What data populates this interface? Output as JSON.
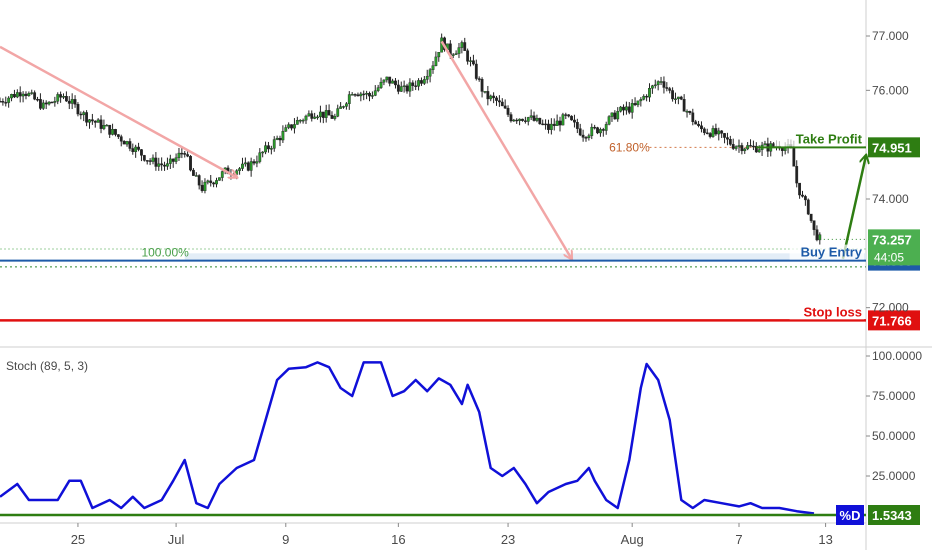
{
  "chart_data": [
    {
      "type": "candlestick",
      "panel": "price",
      "x_axis": {
        "ticks": [
          "25",
          "Jul",
          "9",
          "16",
          "23",
          "Aug",
          "7",
          "13"
        ]
      },
      "y_axis": {
        "range": [
          71.0,
          77.6
        ],
        "ticks": [
          "77.000",
          "76.000",
          "74.000",
          "72.000"
        ],
        "side": "right"
      },
      "price_path": [
        [
          0,
          75.8
        ],
        [
          8,
          76.0
        ],
        [
          15,
          75.7
        ],
        [
          22,
          75.9
        ],
        [
          30,
          75.5
        ],
        [
          37,
          75.3
        ],
        [
          45,
          75.0
        ],
        [
          52,
          74.7
        ],
        [
          58,
          74.6
        ],
        [
          64,
          74.9
        ],
        [
          66,
          74.5
        ],
        [
          70,
          74.2
        ],
        [
          78,
          74.5
        ],
        [
          86,
          74.6
        ],
        [
          94,
          75.0
        ],
        [
          102,
          75.4
        ],
        [
          109,
          75.6
        ],
        [
          116,
          75.5
        ],
        [
          122,
          76.0
        ],
        [
          128,
          75.9
        ],
        [
          134,
          76.2
        ],
        [
          140,
          76.0
        ],
        [
          146,
          76.2
        ],
        [
          150,
          76.5
        ],
        [
          153,
          76.9
        ],
        [
          156,
          76.7
        ],
        [
          160,
          76.8
        ],
        [
          164,
          76.4
        ],
        [
          168,
          75.9
        ],
        [
          172,
          75.8
        ],
        [
          177,
          75.5
        ],
        [
          183,
          75.5
        ],
        [
          190,
          75.3
        ],
        [
          196,
          75.5
        ],
        [
          202,
          75.2
        ],
        [
          208,
          75.3
        ],
        [
          214,
          75.6
        ],
        [
          220,
          75.7
        ],
        [
          225,
          76.0
        ],
        [
          229,
          76.2
        ],
        [
          233,
          75.9
        ],
        [
          237,
          75.7
        ],
        [
          242,
          75.3
        ],
        [
          248,
          75.2
        ],
        [
          254,
          75.0
        ],
        [
          260,
          74.95
        ],
        [
          266,
          74.95
        ],
        [
          270,
          75.0
        ],
        [
          274,
          74.9
        ],
        [
          276,
          74.3
        ],
        [
          278,
          74.0
        ],
        [
          280,
          73.8
        ],
        [
          282,
          73.4
        ],
        [
          284,
          73.257
        ]
      ],
      "current_price": "73.257",
      "last_bar_timer": "44:05",
      "zones": [
        {
          "label": "100.00%",
          "value": 73.0
        },
        {
          "label": "61.80%",
          "value": 74.951
        }
      ],
      "levels": [
        {
          "name": "Take Profit",
          "value": "74.951",
          "color": "#2e7d12"
        },
        {
          "name": "Buy Entry",
          "value": "72.866",
          "color": "#1e5aa8"
        },
        {
          "name": "Stop loss",
          "value": "71.766",
          "color": "#e01010"
        }
      ],
      "arrows": [
        {
          "from": [
            0,
            76.8
          ],
          "to": [
            82,
            74.4
          ],
          "color": "#f2a6a6"
        },
        {
          "from": [
            153,
            76.9
          ],
          "to": [
            198,
            72.9
          ],
          "color": "#f2a6a6"
        },
        {
          "from": [
            292,
            72.9
          ],
          "to": [
            300,
            74.8
          ],
          "color": "#2e7d12"
        }
      ]
    },
    {
      "type": "line",
      "panel": "stoch",
      "title": "Stoch (89, 5, 3)",
      "y_axis": {
        "range": [
          0,
          100
        ],
        "ticks": [
          "100.0000",
          "75.0000",
          "50.0000",
          "25.0000"
        ],
        "side": "right"
      },
      "series": [
        {
          "name": "%D",
          "color": "#1010d8",
          "values": [
            [
              0,
              12
            ],
            [
              6,
              20
            ],
            [
              10,
              10
            ],
            [
              16,
              10
            ],
            [
              20,
              10
            ],
            [
              24,
              22
            ],
            [
              28,
              22
            ],
            [
              32,
              5
            ],
            [
              38,
              10
            ],
            [
              42,
              5
            ],
            [
              46,
              12
            ],
            [
              50,
              5
            ],
            [
              56,
              10
            ],
            [
              60,
              22
            ],
            [
              64,
              35
            ],
            [
              68,
              8
            ],
            [
              72,
              5
            ],
            [
              76,
              20
            ],
            [
              82,
              30
            ],
            [
              88,
              35
            ],
            [
              92,
              60
            ],
            [
              96,
              85
            ],
            [
              100,
              92
            ],
            [
              106,
              93
            ],
            [
              110,
              96
            ],
            [
              114,
              93
            ],
            [
              118,
              80
            ],
            [
              122,
              75
            ],
            [
              126,
              96
            ],
            [
              132,
              96
            ],
            [
              136,
              75
            ],
            [
              140,
              78
            ],
            [
              144,
              85
            ],
            [
              148,
              78
            ],
            [
              152,
              86
            ],
            [
              156,
              82
            ],
            [
              160,
              70
            ],
            [
              162,
              82
            ],
            [
              166,
              65
            ],
            [
              170,
              30
            ],
            [
              174,
              25
            ],
            [
              178,
              30
            ],
            [
              182,
              20
            ],
            [
              186,
              8
            ],
            [
              190,
              15
            ],
            [
              196,
              20
            ],
            [
              200,
              22
            ],
            [
              204,
              30
            ],
            [
              206,
              22
            ],
            [
              210,
              10
            ],
            [
              214,
              5
            ],
            [
              218,
              35
            ],
            [
              222,
              80
            ],
            [
              224,
              95
            ],
            [
              228,
              85
            ],
            [
              232,
              60
            ],
            [
              236,
              10
            ],
            [
              240,
              5
            ],
            [
              244,
              10
            ],
            [
              250,
              8
            ],
            [
              256,
              6
            ],
            [
              260,
              8
            ],
            [
              264,
              5
            ],
            [
              270,
              5
            ],
            [
              276,
              3
            ],
            [
              282,
              1.5343
            ]
          ]
        }
      ],
      "last_value": "1.5343",
      "series_tag": "%D"
    }
  ]
}
